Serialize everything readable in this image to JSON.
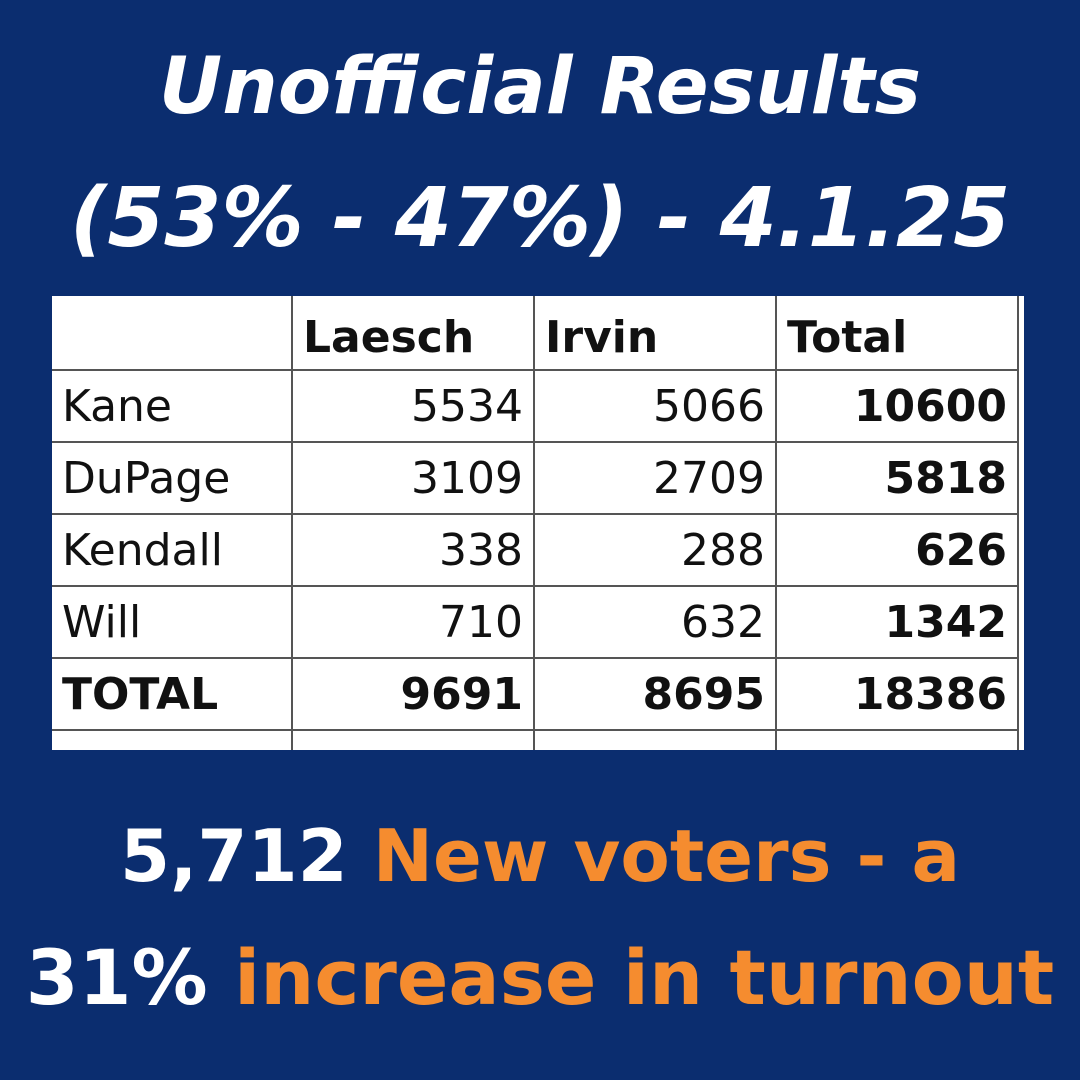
{
  "colors": {
    "background": "#0b2d6f",
    "title_text": "#ffffff",
    "highlight": "#f58c2f"
  },
  "title": {
    "line1": "Unofficial Results",
    "line2": "(53% - 47%) - 4.1.25"
  },
  "table": {
    "columns": [
      "",
      "Laesch",
      "Irvin",
      "Total"
    ],
    "rows": [
      {
        "county": "Kane",
        "laesch": "5534",
        "irvin": "5066",
        "total": "10600"
      },
      {
        "county": "DuPage",
        "laesch": "3109",
        "irvin": "2709",
        "total": "5818"
      },
      {
        "county": "Kendall",
        "laesch": "338",
        "irvin": "288",
        "total": "626"
      },
      {
        "county": "Will",
        "laesch": "710",
        "irvin": "632",
        "total": "1342"
      }
    ],
    "total_row": {
      "county": "TOTAL",
      "laesch": "9691",
      "irvin": "8695",
      "total": "18386"
    }
  },
  "footer": {
    "line1_number": "5,712",
    "line1_text": "New voters - a",
    "line2_number": "31%",
    "line2_text": "increase in turnout"
  }
}
